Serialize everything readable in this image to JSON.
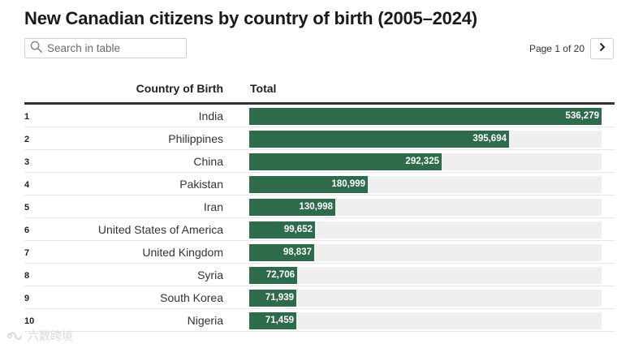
{
  "title": "New Canadian citizens by country of birth (2005–2024)",
  "search": {
    "placeholder": "Search in table"
  },
  "pager": {
    "label": "Page 1 of 20",
    "next_icon": "chevron-right-icon"
  },
  "table": {
    "col_country": "Country of Birth",
    "col_total": "Total"
  },
  "colors": {
    "bar": "#2e6b4b",
    "track": "#efefef"
  },
  "watermark": "六数跨境",
  "chart_data": {
    "type": "bar",
    "orientation": "horizontal",
    "title": "New Canadian citizens by country of birth (2005–2024)",
    "xlabel": "Total",
    "ylabel": "Country of Birth",
    "xlim": [
      0,
      536279
    ],
    "categories": [
      "India",
      "Philippines",
      "China",
      "Pakistan",
      "Iran",
      "United States of America",
      "United Kingdom",
      "Syria",
      "South Korea",
      "Nigeria"
    ],
    "ranks": [
      "1",
      "2",
      "3",
      "4",
      "5",
      "6",
      "7",
      "8",
      "9",
      "10"
    ],
    "values": [
      536279,
      395694,
      292325,
      180999,
      130998,
      99652,
      98837,
      72706,
      71939,
      71459
    ],
    "value_labels": [
      "536,279",
      "395,694",
      "292,325",
      "180,999",
      "130,998",
      "99,652",
      "98,837",
      "72,706",
      "71,939",
      "71,459"
    ]
  }
}
